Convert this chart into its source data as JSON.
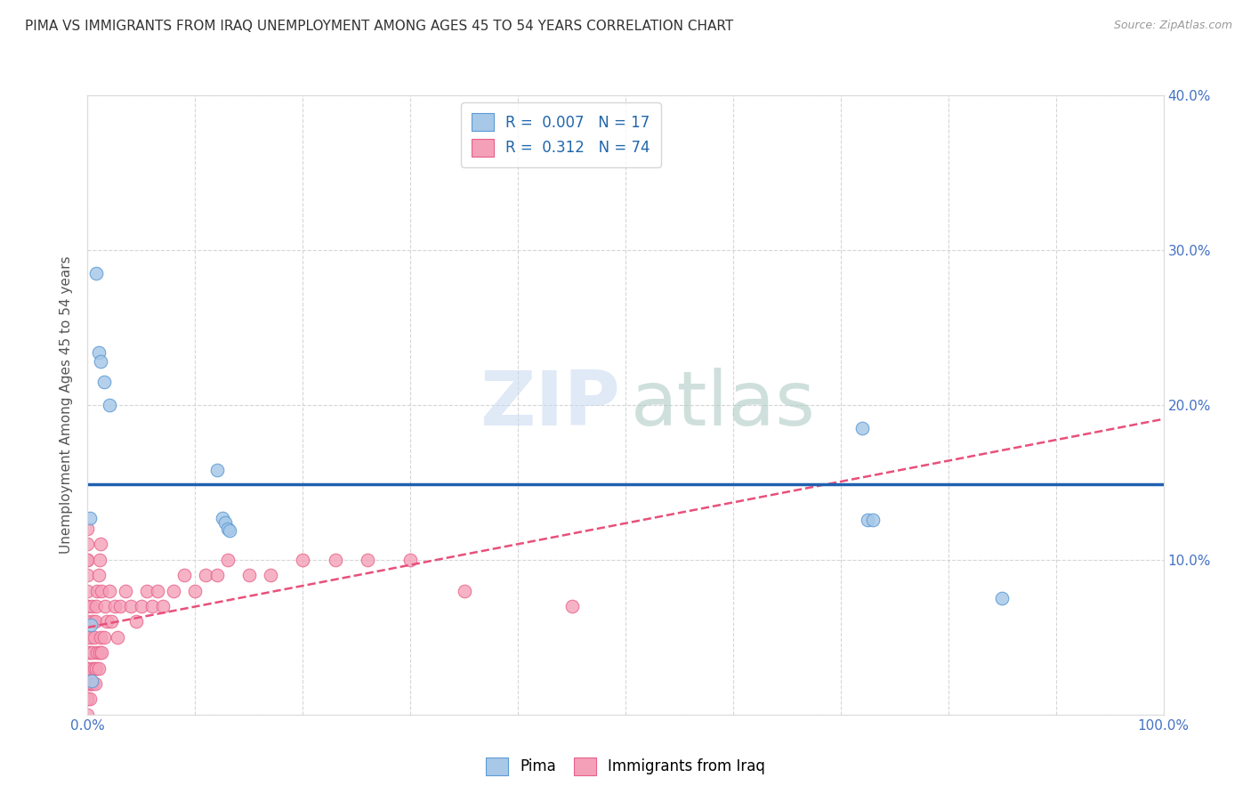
{
  "title": "PIMA VS IMMIGRANTS FROM IRAQ UNEMPLOYMENT AMONG AGES 45 TO 54 YEARS CORRELATION CHART",
  "source": "Source: ZipAtlas.com",
  "ylabel": "Unemployment Among Ages 45 to 54 years",
  "xlim": [
    0,
    1.0
  ],
  "ylim": [
    0,
    0.4
  ],
  "xticks": [
    0.0,
    0.1,
    0.2,
    0.3,
    0.4,
    0.5,
    0.6,
    0.7,
    0.8,
    0.9,
    1.0
  ],
  "xticklabels": [
    "0.0%",
    "",
    "",
    "",
    "",
    "",
    "",
    "",
    "",
    "",
    "100.0%"
  ],
  "yticks_right": [
    0.0,
    0.1,
    0.2,
    0.3,
    0.4
  ],
  "yticklabels_right": [
    "",
    "10.0%",
    "20.0%",
    "30.0%",
    "40.0%"
  ],
  "pima_color": "#a8c8e8",
  "iraq_color": "#f4a0b8",
  "pima_edge_color": "#5b9bd5",
  "iraq_edge_color": "#e8608a",
  "trend_pima_color": "#2060b0",
  "trend_iraq_color": "#e8507a",
  "watermark_zip_color": "#c8d8f0",
  "watermark_atlas_color": "#b0ccc8",
  "pima_R": 0.007,
  "pima_N": 17,
  "iraq_R": 0.312,
  "iraq_N": 74,
  "pima_x": [
    0.008,
    0.01,
    0.012,
    0.015,
    0.02,
    0.12,
    0.125,
    0.128,
    0.13,
    0.132,
    0.72,
    0.725,
    0.73,
    0.85,
    0.002,
    0.003,
    0.004
  ],
  "pima_y": [
    0.285,
    0.234,
    0.228,
    0.215,
    0.2,
    0.158,
    0.127,
    0.124,
    0.12,
    0.119,
    0.185,
    0.126,
    0.126,
    0.075,
    0.127,
    0.058,
    0.022
  ],
  "iraq_x_dense": [
    0.0,
    0.0,
    0.0,
    0.0,
    0.0,
    0.0,
    0.0,
    0.0,
    0.0,
    0.0,
    0.0,
    0.0,
    0.0,
    0.0,
    0.0,
    0.0,
    0.0,
    0.0,
    0.002,
    0.002,
    0.002,
    0.003,
    0.003,
    0.004,
    0.004,
    0.005,
    0.005,
    0.005,
    0.006,
    0.006,
    0.007,
    0.007,
    0.008,
    0.008,
    0.009,
    0.009,
    0.01,
    0.01,
    0.011,
    0.011,
    0.012,
    0.012,
    0.013,
    0.013,
    0.015,
    0.016,
    0.018,
    0.02,
    0.022,
    0.025,
    0.028,
    0.03,
    0.035,
    0.04,
    0.045,
    0.05,
    0.055,
    0.06,
    0.065,
    0.07,
    0.08,
    0.09,
    0.1,
    0.11,
    0.12,
    0.13,
    0.15,
    0.17,
    0.2,
    0.23,
    0.26,
    0.3,
    0.35,
    0.45
  ],
  "iraq_y_dense": [
    0.0,
    0.01,
    0.01,
    0.02,
    0.02,
    0.03,
    0.03,
    0.04,
    0.05,
    0.06,
    0.07,
    0.07,
    0.08,
    0.09,
    0.1,
    0.1,
    0.11,
    0.12,
    0.01,
    0.02,
    0.04,
    0.02,
    0.05,
    0.03,
    0.07,
    0.02,
    0.04,
    0.06,
    0.03,
    0.05,
    0.02,
    0.06,
    0.03,
    0.07,
    0.04,
    0.08,
    0.03,
    0.09,
    0.04,
    0.1,
    0.05,
    0.11,
    0.04,
    0.08,
    0.05,
    0.07,
    0.06,
    0.08,
    0.06,
    0.07,
    0.05,
    0.07,
    0.08,
    0.07,
    0.06,
    0.07,
    0.08,
    0.07,
    0.08,
    0.07,
    0.08,
    0.09,
    0.08,
    0.09,
    0.09,
    0.1,
    0.09,
    0.09,
    0.1,
    0.1,
    0.1,
    0.1,
    0.08,
    0.07
  ],
  "background_color": "#ffffff",
  "grid_color": "#cccccc",
  "marker_size": 110,
  "title_fontsize": 11,
  "axis_label_fontsize": 11,
  "tick_fontsize": 11,
  "legend_fontsize": 12
}
